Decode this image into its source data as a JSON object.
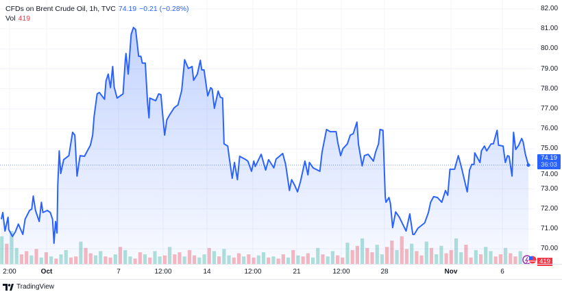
{
  "legend": {
    "symbol": "CFDs on Brent Crude Oil, 1h, TVC",
    "last": "74.19",
    "change": "−0.21 (−0.28%)",
    "vol_label": "Vol",
    "vol_value": "419"
  },
  "price_label": {
    "price": "74.19",
    "countdown": "36:03"
  },
  "volume_label": "419",
  "footer": {
    "brand": "TradingView"
  },
  "colors": {
    "line": "#2962ff",
    "up": "#22ab94",
    "down": "#f23645",
    "grid": "#f0f3fa"
  },
  "chart_data": {
    "type": "area",
    "title": "CFDs on Brent Crude Oil, 1h, TVC",
    "ylim": [
      69.6,
      82.4
    ],
    "y_ticks": [
      "82.00",
      "81.00",
      "80.00",
      "79.00",
      "78.00",
      "77.00",
      "76.00",
      "75.00",
      "74.00",
      "73.00",
      "72.00",
      "71.00",
      "70.00"
    ],
    "x_ticks": [
      {
        "label": "2:00",
        "bold": false
      },
      {
        "label": "Oct",
        "bold": true
      },
      {
        "label": "7",
        "bold": false
      },
      {
        "label": "12:00",
        "bold": false
      },
      {
        "label": "14",
        "bold": false
      },
      {
        "label": "12:00",
        "bold": false
      },
      {
        "label": "21",
        "bold": false
      },
      {
        "label": "12:00",
        "bold": false
      },
      {
        "label": "28",
        "bold": false
      },
      {
        "label": "Nov",
        "bold": true
      },
      {
        "label": "6",
        "bold": false
      }
    ],
    "grid": true,
    "last_price": 74.19,
    "series": [
      {
        "points": [
          [
            "Sep 26 11:00",
            71.48
          ],
          [
            "Sep 26 13:00",
            71.82
          ],
          [
            "Sep 26 16:00",
            70.89
          ],
          [
            "Sep 26 20:00",
            71.58
          ],
          [
            "Sep 26 21:00",
            70.96
          ],
          [
            "Sep 27 02:00",
            70.62
          ],
          [
            "Sep 27 06:00",
            70.86
          ],
          [
            "Sep 27 10:00",
            71.24
          ],
          [
            "Sep 27 16:00",
            70.72
          ],
          [
            "Sep 27 19:00",
            71.48
          ],
          [
            "Sep 30 01:00",
            71.92
          ],
          [
            "Sep 30 04:00",
            71.99
          ],
          [
            "Sep 30 06:00",
            72.64
          ],
          [
            "Sep 30 09:00",
            71.92
          ],
          [
            "Sep 30 14:00",
            71.37
          ],
          [
            "Sep 30 17:00",
            72.33
          ],
          [
            "Sep 30 19:00",
            71.82
          ],
          [
            "Oct 1 01:00",
            71.92
          ],
          [
            "Oct 1 05:00",
            71.82
          ],
          [
            "Oct 1 08:00",
            71.48
          ],
          [
            "Oct 1 10:00",
            70.28
          ],
          [
            "Oct 1 12:00",
            71.37
          ],
          [
            "Oct 1 14:00",
            70.79
          ],
          [
            "Oct 1 15:00",
            73.19
          ],
          [
            "Oct 1 17:00",
            74.9
          ],
          [
            "Oct 1 19:00",
            73.77
          ],
          [
            "Oct 1 23:00",
            74.46
          ],
          [
            "Oct 2 06:00",
            74.66
          ],
          [
            "Oct 2 08:00",
            75.14
          ],
          [
            "Oct 2 11:00",
            75.83
          ],
          [
            "Oct 2 14:00",
            75.69
          ],
          [
            "Oct 2 17:00",
            73.64
          ],
          [
            "Oct 2 21:00",
            74.66
          ],
          [
            "Oct 3 03:00",
            74.63
          ],
          [
            "Oct 3 06:00",
            74.84
          ],
          [
            "Oct 3 11:00",
            75.18
          ],
          [
            "Oct 3 14:00",
            75.69
          ],
          [
            "Oct 3 16:00",
            76.62
          ],
          [
            "Oct 3 20:00",
            77.75
          ],
          [
            "Oct 3 23:00",
            77.82
          ],
          [
            "Oct 4 06:00",
            77.48
          ],
          [
            "Oct 4 08:00",
            78.4
          ],
          [
            "Oct 4 11:00",
            78.74
          ],
          [
            "Oct 4 14:00",
            78.06
          ],
          [
            "Oct 4 17:00",
            79.12
          ],
          [
            "Oct 4 19:00",
            78.09
          ],
          [
            "Oct 4 23:00",
            77.54
          ],
          [
            "Oct 7 06:00",
            77.75
          ],
          [
            "Oct 7 09:00",
            79.43
          ],
          [
            "Oct 7 10:00",
            79.77
          ],
          [
            "Oct 7 13:00",
            78.74
          ],
          [
            "Oct 7 17:00",
            80.73
          ],
          [
            "Oct 7 20:00",
            81.07
          ],
          [
            "Oct 7 23:00",
            80.97
          ],
          [
            "Oct 8 03:00",
            79.63
          ],
          [
            "Oct 8 06:00",
            79.63
          ],
          [
            "Oct 8 08:00",
            79.29
          ],
          [
            "Oct 8 12:00",
            79.29
          ],
          [
            "Oct 8 15:00",
            77.3
          ],
          [
            "Oct 8 17:00",
            76.55
          ],
          [
            "Oct 8 18:00",
            77.54
          ],
          [
            "Oct 9 02:00",
            77.41
          ],
          [
            "Oct 9 06:00",
            77.75
          ],
          [
            "Oct 9 09:00",
            77.71
          ],
          [
            "Oct 9 11:00",
            76.89
          ],
          [
            "Oct 9 14:00",
            75.69
          ],
          [
            "Oct 9 17:00",
            76.45
          ],
          [
            "Oct 9 21:00",
            76.72
          ],
          [
            "Oct 10 03:00",
            77.06
          ],
          [
            "Oct 10 08:00",
            77.2
          ],
          [
            "Oct 10 13:00",
            77.92
          ],
          [
            "Oct 10 17:00",
            79.46
          ],
          [
            "Oct 10 22:00",
            79.02
          ],
          [
            "Oct 11 04:00",
            79.12
          ],
          [
            "Oct 11 06:00",
            78.43
          ],
          [
            "Oct 11 11:00",
            78.74
          ],
          [
            "Oct 11 15:00",
            79.43
          ],
          [
            "Oct 11 17:00",
            78.95
          ],
          [
            "Oct 11 20:00",
            78.95
          ],
          [
            "Oct 14 01:00",
            77.65
          ],
          [
            "Oct 14 05:00",
            78.06
          ],
          [
            "Oct 14 07:00",
            77.99
          ],
          [
            "Oct 14 10:00",
            77.03
          ],
          [
            "Oct 14 15:00",
            77.89
          ],
          [
            "Oct 14 18:00",
            77.58
          ],
          [
            "Oct 14 21:00",
            77.54
          ],
          [
            "Oct 14 23:00",
            75.25
          ],
          [
            "Oct 15 04:00",
            75.14
          ],
          [
            "Oct 15 06:00",
            74.56
          ],
          [
            "Oct 15 10:00",
            73.53
          ],
          [
            "Oct 15 13:00",
            74.32
          ],
          [
            "Oct 15 17:00",
            73.46
          ],
          [
            "Oct 15 20:00",
            74.63
          ],
          [
            "Oct 16 03:00",
            74.49
          ],
          [
            "Oct 16 07:00",
            74.39
          ],
          [
            "Oct 16 12:00",
            73.88
          ],
          [
            "Oct 16 15:00",
            74.39
          ],
          [
            "Oct 16 17:00",
            74.12
          ],
          [
            "Oct 17 01:00",
            74.73
          ],
          [
            "Oct 17 07:00",
            73.94
          ],
          [
            "Oct 17 11:00",
            74.46
          ],
          [
            "Oct 17 18:00",
            74.05
          ],
          [
            "Oct 17 21:00",
            74.49
          ],
          [
            "Oct 18 06:00",
            74.77
          ],
          [
            "Oct 18 10:00",
            74.22
          ],
          [
            "Oct 18 15:00",
            72.92
          ],
          [
            "Oct 18 18:00",
            73.46
          ],
          [
            "Oct 18 22:00",
            73.19
          ],
          [
            "Oct 21 01:00",
            72.85
          ],
          [
            "Oct 21 05:00",
            73.36
          ],
          [
            "Oct 21 11:00",
            74.39
          ],
          [
            "Oct 21 15:00",
            73.7
          ],
          [
            "Oct 21 17:00",
            74.32
          ],
          [
            "Oct 21 22:00",
            74.05
          ],
          [
            "Oct 22 08:00",
            73.88
          ],
          [
            "Oct 22 11:00",
            74.84
          ],
          [
            "Oct 22 17:00",
            75.97
          ],
          [
            "Oct 22 22:00",
            75.86
          ],
          [
            "Oct 23 06:00",
            75.86
          ],
          [
            "Oct 23 08:00",
            75.35
          ],
          [
            "Oct 23 12:00",
            74.66
          ],
          [
            "Oct 23 15:00",
            75.01
          ],
          [
            "Oct 23 21:00",
            75.25
          ],
          [
            "Oct 24 01:00",
            75.69
          ],
          [
            "Oct 24 05:00",
            75.76
          ],
          [
            "Oct 24 10:00",
            76.34
          ],
          [
            "Oct 24 12:00",
            75.25
          ],
          [
            "Oct 24 17:00",
            74.15
          ],
          [
            "Oct 24 20:00",
            74.66
          ],
          [
            "Oct 25 02:00",
            74.73
          ],
          [
            "Oct 25 09:00",
            74.39
          ],
          [
            "Oct 25 12:00",
            74.84
          ],
          [
            "Oct 25 16:00",
            75.25
          ],
          [
            "Oct 25 18:00",
            75.97
          ],
          [
            "Oct 25 22:00",
            75.93
          ],
          [
            "Oct 28 01:00",
            72.61
          ],
          [
            "Oct 28 02:00",
            72.33
          ],
          [
            "Oct 28 06:00",
            72.57
          ],
          [
            "Oct 28 08:00",
            72.26
          ],
          [
            "Oct 28 11:00",
            71.06
          ],
          [
            "Oct 28 15:00",
            71.85
          ],
          [
            "Oct 28 20:00",
            71.58
          ],
          [
            "Oct 29 06:00",
            70.89
          ],
          [
            "Oct 29 11:00",
            71.75
          ],
          [
            "Oct 29 15:00",
            70.72
          ],
          [
            "Oct 29 17:00",
            70.72
          ],
          [
            "Oct 29 22:00",
            71.03
          ],
          [
            "Oct 30 08:00",
            71.3
          ],
          [
            "Oct 30 13:00",
            71.82
          ],
          [
            "Oct 30 16:00",
            72.33
          ],
          [
            "Oct 30 20:00",
            72.61
          ],
          [
            "Oct 31 01:00",
            72.57
          ],
          [
            "Oct 31 07:00",
            72.33
          ],
          [
            "Oct 31 12:00",
            72.92
          ],
          [
            "Oct 31 15:00",
            72.68
          ],
          [
            "Oct 31 18:00",
            73.98
          ],
          [
            "Nov 1 03:00",
            73.98
          ],
          [
            "Nov 1 08:00",
            74.66
          ],
          [
            "Nov 1 12:00",
            74.12
          ],
          [
            "Nov 1 20:00",
            72.85
          ],
          [
            "Nov 4 01:00",
            73.94
          ],
          [
            "Nov 4 04:00",
            74.22
          ],
          [
            "Nov 4 07:00",
            74.22
          ],
          [
            "Nov 4 08:00",
            74.8
          ],
          [
            "Nov 4 15:00",
            74.32
          ],
          [
            "Nov 4 17:00",
            74.9
          ],
          [
            "Nov 4 21:00",
            75.14
          ],
          [
            "Nov 5 01:00",
            74.9
          ],
          [
            "Nov 5 07:00",
            75.25
          ],
          [
            "Nov 5 10:00",
            75.25
          ],
          [
            "Nov 5 15:00",
            75.93
          ],
          [
            "Nov 5 17:00",
            75.18
          ],
          [
            "Nov 6 01:00",
            75.14
          ],
          [
            "Nov 6 04:00",
            74.32
          ],
          [
            "Nov 6 07:00",
            74.66
          ],
          [
            "Nov 6 09:00",
            74.63
          ],
          [
            "Nov 6 13:00",
            73.64
          ],
          [
            "Nov 6 15:00",
            75.83
          ],
          [
            "Nov 6 17:00",
            75.25
          ],
          [
            "Nov 6 18:00",
            74.97
          ],
          [
            "Nov 6 22:00",
            75.18
          ],
          [
            "Nov 7 02:00",
            75.52
          ],
          [
            "Nov 7 04:00",
            75.35
          ],
          [
            "Nov 7 07:00",
            74.73
          ],
          [
            "Nov 7 11:00",
            74.19
          ]
        ]
      }
    ],
    "volume": {
      "values": [
        2600,
        1900,
        3100,
        1500,
        900,
        1200,
        800,
        1400,
        600,
        1100,
        700,
        500,
        900,
        1300,
        600,
        700,
        2100,
        1500,
        1000,
        800,
        1200,
        700,
        600,
        900,
        1600,
        1300,
        700,
        500,
        1100,
        900,
        600,
        1200,
        700,
        800,
        1600,
        900,
        1100,
        700,
        1300,
        800,
        600,
        900,
        1500,
        1200,
        700,
        1400,
        800,
        600,
        1000,
        700,
        900,
        600,
        800,
        1100,
        600,
        700,
        500,
        900,
        600,
        1300,
        800,
        700,
        1000,
        600,
        1500,
        900,
        700,
        1200,
        800,
        600,
        2000,
        1300,
        1700,
        2400,
        1500,
        1100,
        1800,
        900,
        1600,
        2200,
        1300,
        2600,
        1400,
        1900,
        1200,
        800,
        2100,
        1500,
        900,
        1700,
        1000,
        1300,
        2400,
        1100,
        1800,
        600,
        1300,
        900,
        1600,
        1200,
        700,
        900,
        1500,
        1000,
        700,
        1200,
        419
      ],
      "direction": "uduuddudududuuddudduudduduudduduududdudduududuuddudduududdududduuduudduddudduudduddudduduudduudduduuddudduudd"
    }
  }
}
